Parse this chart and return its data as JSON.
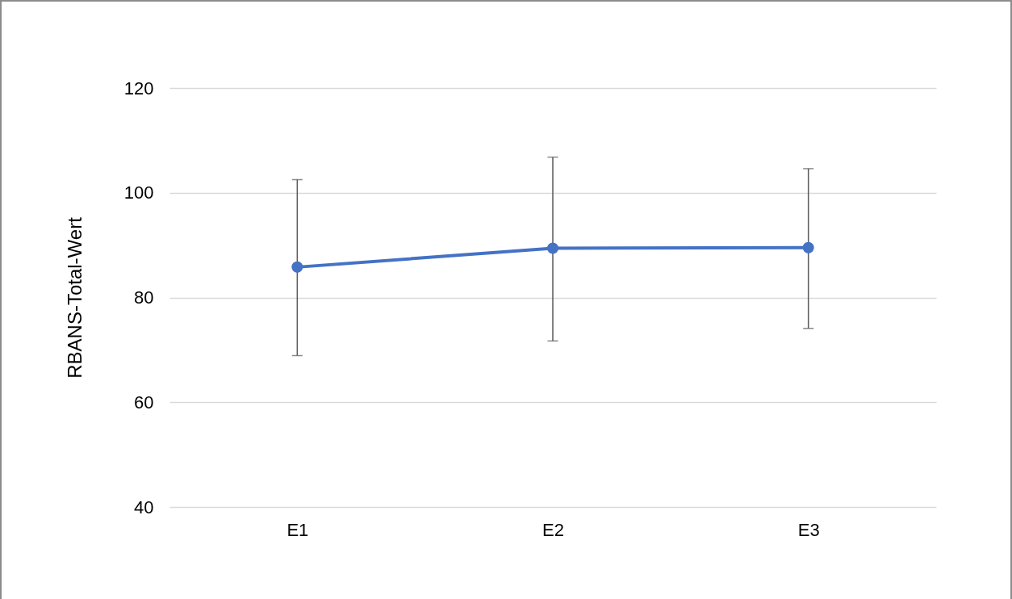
{
  "chart_data": {
    "type": "line",
    "ylabel": "RBANS-Total-Wert",
    "categories": [
      "E1",
      "E2",
      "E3"
    ],
    "series": [
      {
        "color": "#4472c4",
        "values": [
          85.8,
          89.4,
          89.5
        ],
        "errors": [
          [
            68.9,
            102.5
          ],
          [
            71.7,
            106.8
          ],
          [
            74.1,
            104.6
          ]
        ]
      }
    ],
    "ylim": [
      40,
      120
    ],
    "yticks": [
      40,
      60,
      80,
      100,
      120
    ],
    "grid": "y",
    "marker": "circle",
    "line_style": "solid"
  }
}
